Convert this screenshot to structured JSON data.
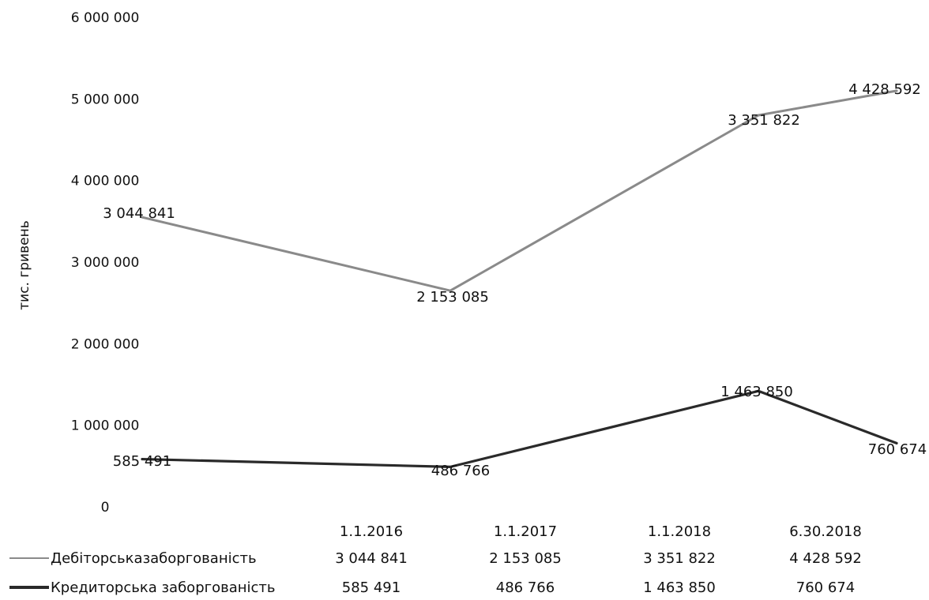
{
  "chart_data": {
    "type": "line",
    "title": "",
    "xlabel": "",
    "ylabel": "тис. гривень",
    "ylim": [
      0,
      6000000
    ],
    "yticks": [
      {
        "value": 0,
        "label": "0"
      },
      {
        "value": 1000000,
        "label": "1 000 000"
      },
      {
        "value": 2000000,
        "label": "2 000 000"
      },
      {
        "value": 3000000,
        "label": "3 000 000"
      },
      {
        "value": 4000000,
        "label": "4 000 000"
      },
      {
        "value": 5000000,
        "label": "5 000 000"
      },
      {
        "value": 6000000,
        "label": "6 000 000"
      }
    ],
    "categories": [
      "1.1.2016",
      "1.1.2017",
      "1.1.2018",
      "6.30.2018"
    ],
    "grid": false,
    "legend_placement": "data-table-left",
    "series": [
      {
        "name": "Дебіторськазаборгованість",
        "values": [
          3044841,
          2153085,
          3351822,
          4428592
        ],
        "plot_values": [
          3550000,
          2650000,
          4800000,
          5100000
        ],
        "labels": [
          "3 044 841",
          "2 153 085",
          "3 351 822",
          "4 428 592"
        ],
        "color": "#8a8a8a"
      },
      {
        "name": "Кредиторська заборгованість",
        "values": [
          585491,
          486766,
          1463850,
          760674
        ],
        "plot_values": [
          585000,
          490000,
          1420000,
          780000
        ],
        "labels": [
          "585 491",
          "486 766",
          "1 463 850",
          "760 674"
        ],
        "color": "#2a2a2a"
      }
    ]
  }
}
